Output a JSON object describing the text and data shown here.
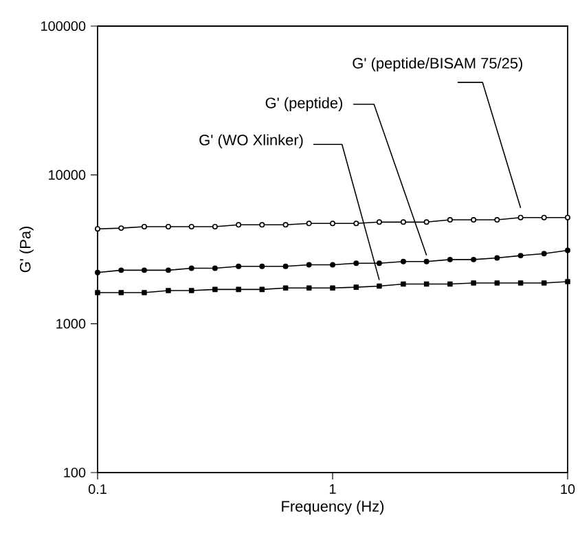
{
  "chart_data": {
    "type": "line",
    "xlabel": "Frequency (Hz)",
    "ylabel": "G' (Pa)",
    "log": "xy",
    "xlim": [
      0.1,
      10
    ],
    "ylim": [
      100,
      100000
    ],
    "xticks": [
      0.1,
      1,
      10
    ],
    "yticks": [
      100,
      1000,
      10000,
      100000
    ],
    "grid": false,
    "x": [
      0.1,
      0.126,
      0.158,
      0.2,
      0.251,
      0.316,
      0.398,
      0.501,
      0.631,
      0.794,
      1,
      1.26,
      1.58,
      2,
      2.51,
      3.16,
      3.98,
      5.01,
      6.31,
      7.94,
      10
    ],
    "series": [
      {
        "name": "G' (peptide/BISAM 75/25)",
        "color": "#000000",
        "marker": "open circle",
        "values": [
          4340,
          4390,
          4490,
          4490,
          4490,
          4490,
          4620,
          4620,
          4620,
          4720,
          4720,
          4720,
          4820,
          4820,
          4820,
          4990,
          4990,
          4990,
          5170,
          5170,
          5170
        ]
      },
      {
        "name": "G' (peptide)",
        "color": "#000000",
        "marker": "circle",
        "values": [
          2210,
          2290,
          2290,
          2290,
          2360,
          2360,
          2430,
          2430,
          2430,
          2490,
          2490,
          2550,
          2550,
          2620,
          2620,
          2700,
          2700,
          2770,
          2870,
          2960,
          3110
        ]
      },
      {
        "name": "G' (WO Xlinker)",
        "color": "#000000",
        "marker": "square",
        "values": [
          1620,
          1620,
          1620,
          1670,
          1670,
          1700,
          1700,
          1700,
          1740,
          1740,
          1740,
          1760,
          1790,
          1850,
          1850,
          1850,
          1880,
          1880,
          1880,
          1880,
          1920
        ]
      }
    ]
  }
}
